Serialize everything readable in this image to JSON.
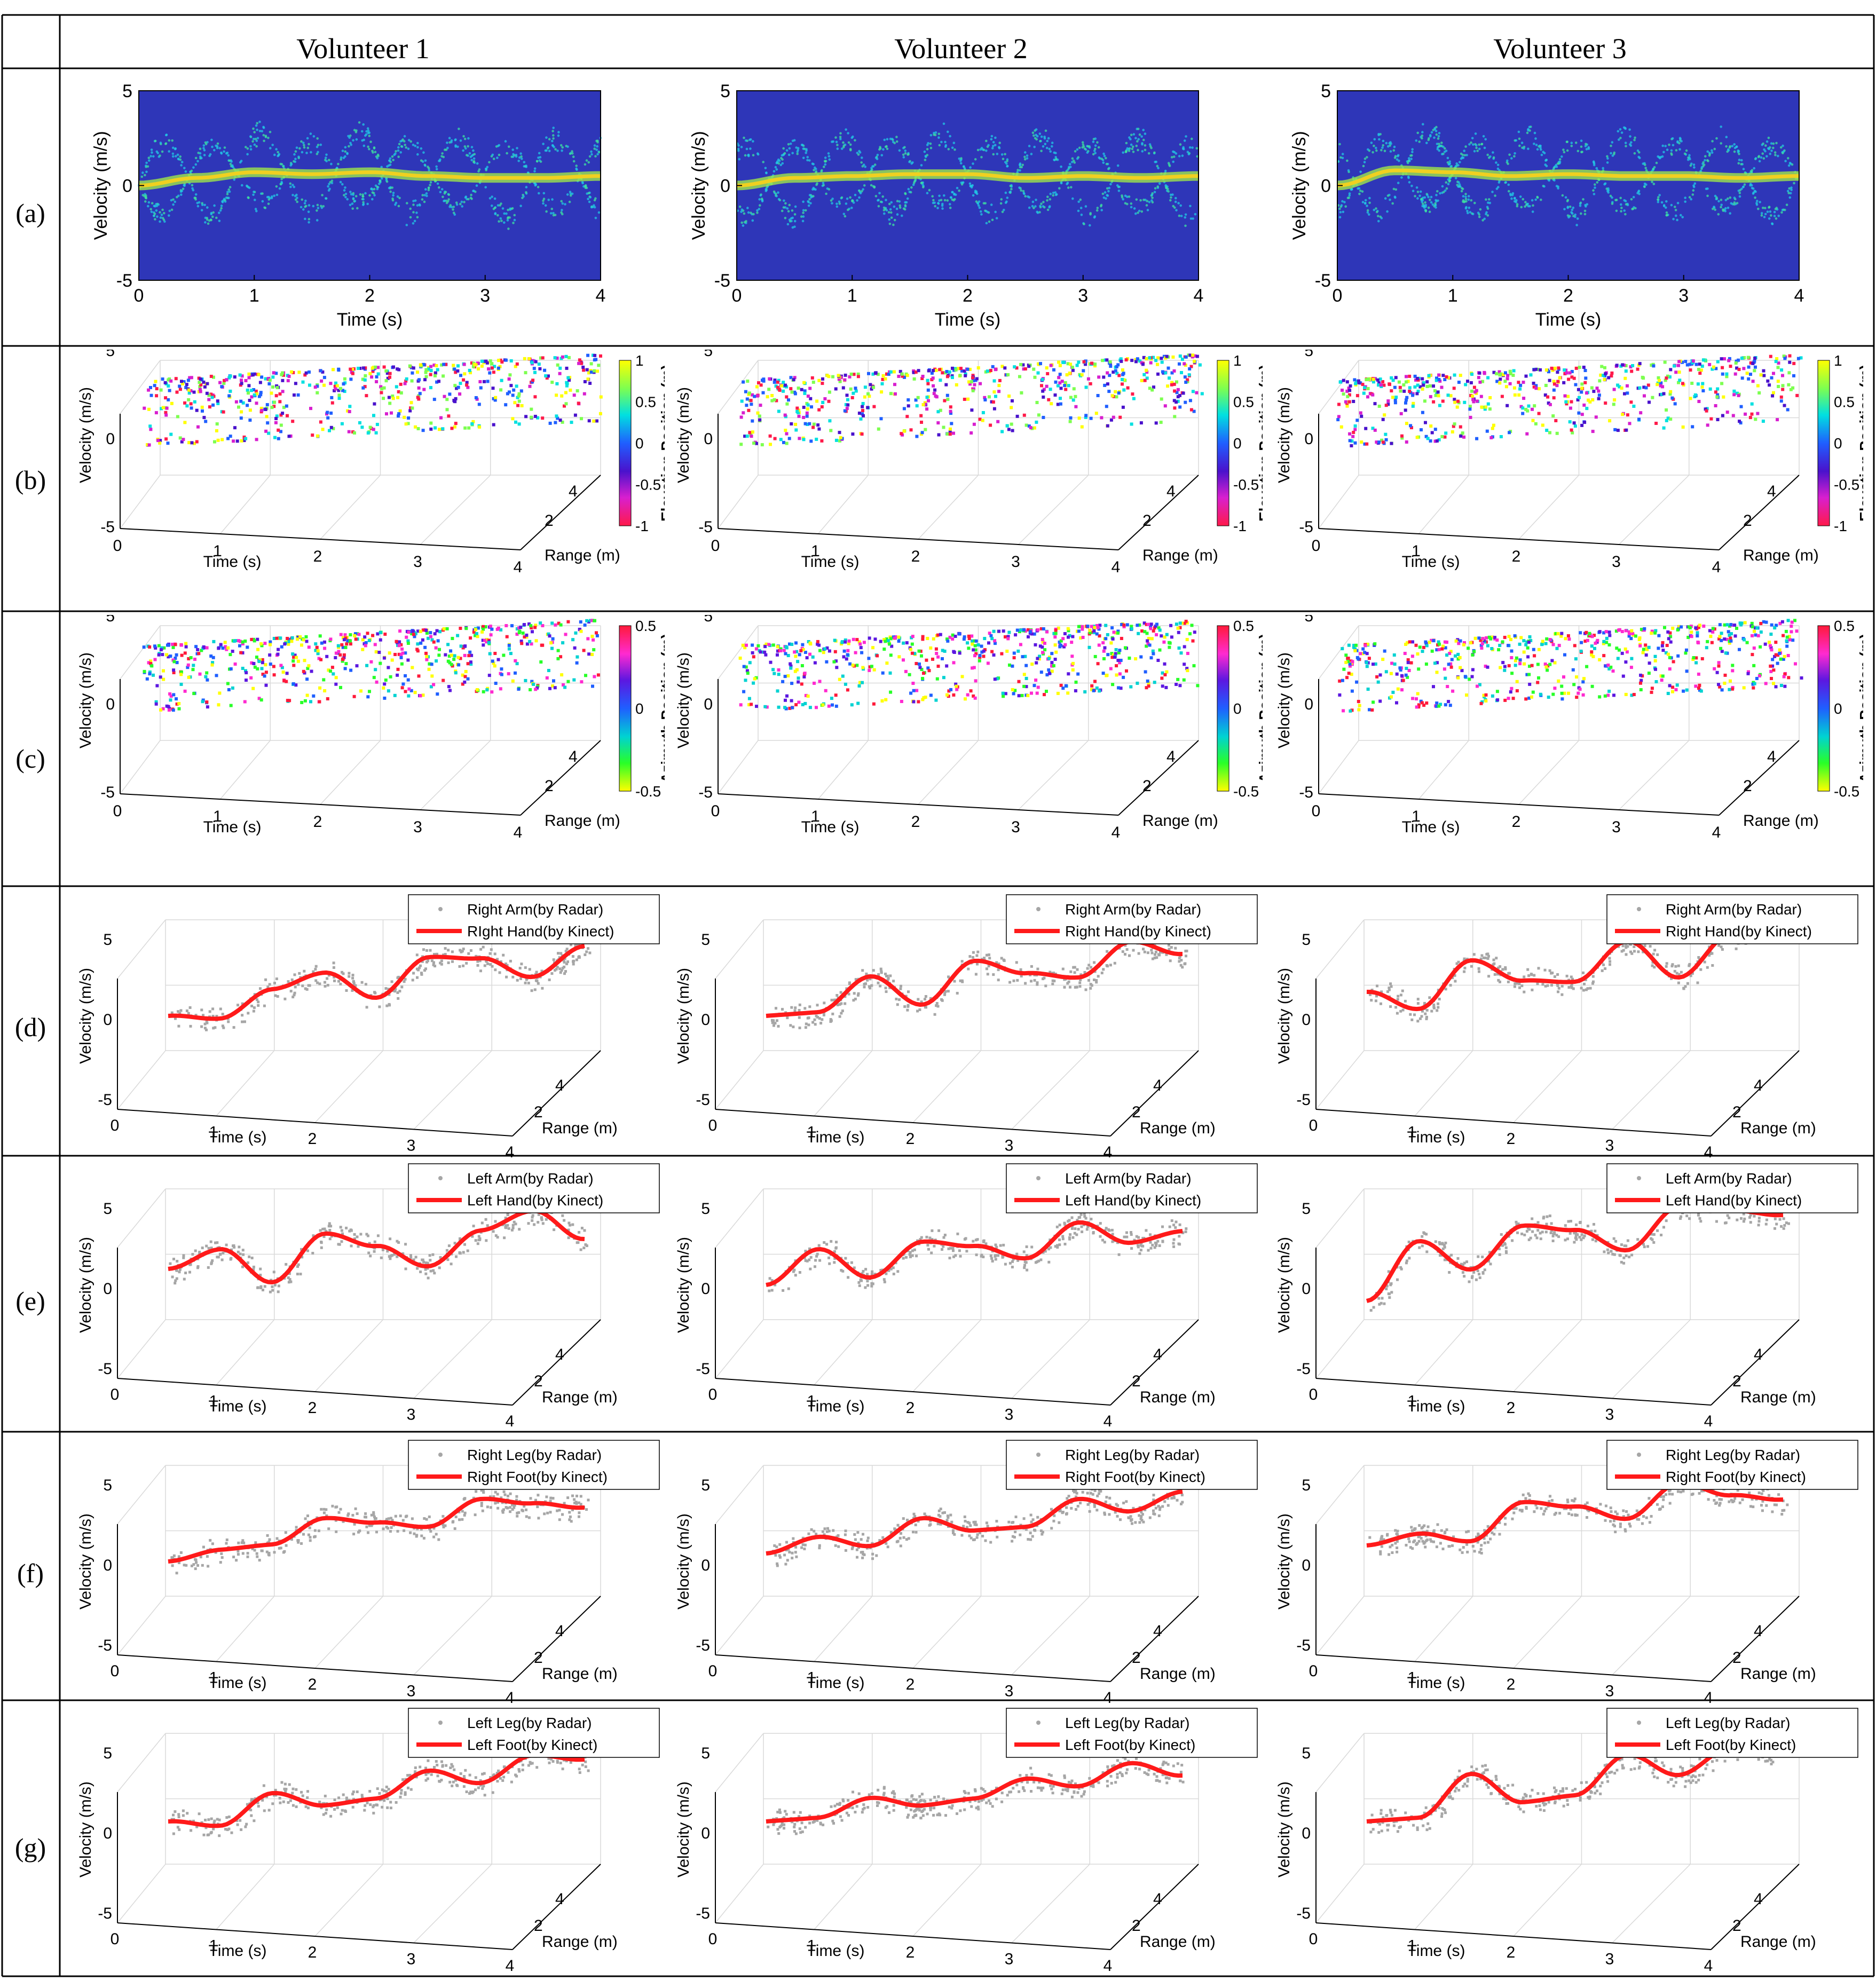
{
  "columns": [
    "Volunteer 1",
    "Volunteer 2",
    "Volunteer 3"
  ],
  "rows": [
    "(a)",
    "(b)",
    "(c)",
    "(d)",
    "(e)",
    "(f)",
    "(g)"
  ],
  "colors": {
    "red_line": "#ff1a1a",
    "gray_points": "#a6a6a6",
    "spectrogram_bg": "#2e36b8"
  },
  "row_a": {
    "type": "heatmap",
    "xlabel": "Time (s)",
    "ylabel": "Velocity (m/s)",
    "xticks": [
      "0",
      "1",
      "2",
      "3",
      "4"
    ],
    "yticks": [
      "5",
      "0",
      "-5"
    ],
    "xlim": [
      0,
      4
    ],
    "ylim": [
      -5,
      5
    ]
  },
  "row_b": {
    "type": "scatter",
    "ylabel": "Velocity (m/s)",
    "xlabel": "Time (s)",
    "zlabel": "Range (m)",
    "yticks": [
      "5",
      "0",
      "-5"
    ],
    "xticks": [
      "0",
      "1",
      "2",
      "3",
      "4"
    ],
    "zticks": [
      "2",
      "4"
    ],
    "colorbar": {
      "label": "Elevation Position (m)",
      "ticks": [
        "1",
        "0.5",
        "0",
        "-0.5",
        "-1"
      ],
      "range": [
        -1,
        1
      ]
    }
  },
  "row_c": {
    "type": "scatter",
    "ylabel": "Velocity (m/s)",
    "xlabel": "Time (s)",
    "zlabel": "Range (m)",
    "yticks": [
      "5",
      "0",
      "-5"
    ],
    "xticks": [
      "0",
      "1",
      "2",
      "3",
      "4"
    ],
    "zticks": [
      "2",
      "4"
    ],
    "colorbar": {
      "label": "Azimuth Position (m)",
      "ticks": [
        "0.5",
        "0",
        "-0.5"
      ],
      "range": [
        -0.5,
        0.5
      ]
    }
  },
  "row_d": {
    "legend": [
      "Right Arm(by Radar)",
      "RIght Hand(by Kinect)"
    ]
  },
  "row_e": {
    "legend": [
      "Left Arm(by Radar)",
      "Left Hand(by Kinect)"
    ]
  },
  "row_f": {
    "legend": [
      "Right Leg(by Radar)",
      "Right Foot(by Kinect)"
    ]
  },
  "row_g": {
    "legend": [
      "Left Leg(by Radar)",
      "Left Foot(by Kinect)"
    ]
  },
  "row_d_v23_legend": [
    "Right Arm(by Radar)",
    "Right Hand(by Kinect)"
  ],
  "track_axes": {
    "ylabel": "Velocity (m/s)",
    "xlabel": "Time (s)",
    "zlabel": "Range (m)",
    "yticks": [
      "5",
      "0",
      "-5"
    ],
    "xticks": [
      "0",
      "1",
      "2",
      "3",
      "4"
    ],
    "zticks": [
      "2",
      "4"
    ]
  },
  "chart_data": [
    {
      "panel": "a",
      "type": "heatmap",
      "title": "",
      "xlabel": "Time (s)",
      "ylabel": "Velocity (m/s)",
      "xlim": [
        0,
        4
      ],
      "ylim": [
        -5,
        5
      ],
      "series": [
        {
          "name": "Volunteer 1",
          "x": [
            0,
            0.5,
            1,
            1.5,
            2,
            2.5,
            3,
            3.5,
            4
          ],
          "y": [
            0,
            0.4,
            0.7,
            0.6,
            0.7,
            0.5,
            0.4,
            0.4,
            0.5
          ]
        },
        {
          "name": "Volunteer 2",
          "x": [
            0,
            0.5,
            1,
            1.5,
            2,
            2.5,
            3,
            3.5,
            4
          ],
          "y": [
            0,
            0.4,
            0.5,
            0.6,
            0.6,
            0.4,
            0.5,
            0.4,
            0.5
          ]
        },
        {
          "name": "Volunteer 3",
          "x": [
            0,
            0.5,
            1,
            1.5,
            2,
            2.5,
            3,
            3.5,
            4
          ],
          "y": [
            0,
            0.8,
            0.7,
            0.5,
            0.6,
            0.5,
            0.5,
            0.4,
            0.5
          ]
        }
      ]
    },
    {
      "panel": "d",
      "type": "line",
      "xlabel": "Time (s)",
      "ylabel": "Velocity (m/s)",
      "series": [
        {
          "name": "Volunteer 1",
          "x": [
            0,
            0.5,
            1,
            1.5,
            2,
            2.5,
            3,
            3.5,
            4
          ],
          "y": [
            0,
            -0.4,
            1.2,
            2,
            0.2,
            2.5,
            2.2,
            0.8,
            2.5
          ]
        },
        {
          "name": "Volunteer 2",
          "x": [
            0,
            0.5,
            1,
            1.5,
            2,
            2.5,
            3,
            3.5,
            4
          ],
          "y": [
            0,
            0,
            2,
            0,
            2.5,
            1.5,
            1,
            3,
            2
          ]
        },
        {
          "name": "Volunteer 3",
          "x": [
            0,
            0.5,
            1,
            1.5,
            2,
            2.5,
            3,
            3.5,
            4
          ],
          "y": [
            1.5,
            0.2,
            3,
            1.5,
            1.2,
            3.5,
            1,
            3.5,
            4
          ]
        }
      ]
    },
    {
      "panel": "e",
      "type": "line",
      "xlabel": "Time (s)",
      "ylabel": "Velocity (m/s)",
      "series": [
        {
          "name": "Volunteer 1",
          "x": [
            0,
            0.5,
            1,
            1.5,
            2,
            2.5,
            3,
            3.5,
            4
          ],
          "y": [
            1,
            2,
            -0.3,
            2.5,
            1.5,
            0,
            2,
            3,
            1
          ]
        },
        {
          "name": "Volunteer 2",
          "x": [
            0,
            0.5,
            1,
            1.5,
            2,
            2.5,
            3,
            3.5,
            4
          ],
          "y": [
            0,
            2,
            0,
            2,
            1.5,
            0.5,
            2.5,
            1,
            1.5
          ]
        },
        {
          "name": "Volunteer 3",
          "x": [
            0,
            0.5,
            1,
            1.5,
            2,
            2.5,
            3,
            3.5,
            4
          ],
          "y": [
            -1,
            2.5,
            0.5,
            3,
            2.5,
            1,
            3.5,
            3,
            2.5
          ]
        }
      ]
    },
    {
      "panel": "f",
      "type": "line",
      "xlabel": "Time (s)",
      "ylabel": "Velocity (m/s)",
      "series": [
        {
          "name": "Volunteer 1",
          "x": [
            0,
            0.5,
            1,
            1.5,
            2,
            2.5,
            3,
            3.5,
            4
          ],
          "y": [
            0,
            0.5,
            0.6,
            2,
            1.5,
            1,
            2.5,
            2,
            1.5
          ]
        },
        {
          "name": "Volunteer 2",
          "x": [
            0,
            0.5,
            1,
            1.5,
            2,
            2.5,
            3,
            3.5,
            4
          ],
          "y": [
            0.5,
            1.3,
            0.5,
            2,
            1,
            1,
            2.5,
            1.5,
            2.5
          ]
        },
        {
          "name": "Volunteer 3",
          "x": [
            0,
            0.5,
            1,
            1.5,
            2,
            2.5,
            3,
            3.5,
            4
          ],
          "y": [
            1,
            1.5,
            0.8,
            3,
            2.5,
            1.5,
            3.5,
            2.5,
            2
          ]
        }
      ]
    },
    {
      "panel": "g",
      "type": "line",
      "xlabel": "Time (s)",
      "ylabel": "Velocity (m/s)",
      "series": [
        {
          "name": "Volunteer 1",
          "x": [
            0,
            0.5,
            1,
            1.5,
            2,
            2.5,
            3,
            3.5,
            4
          ],
          "y": [
            0.5,
            0,
            1.8,
            0.8,
            1,
            2.5,
            1.5,
            3,
            2.5
          ]
        },
        {
          "name": "Volunteer 2",
          "x": [
            0,
            0.5,
            1,
            1.5,
            2,
            2.5,
            3,
            3.5,
            4
          ],
          "y": [
            0.5,
            0.5,
            1.5,
            0.8,
            1,
            2,
            1.3,
            2.5,
            1.5
          ]
        },
        {
          "name": "Volunteer 3",
          "x": [
            0,
            0.5,
            1,
            1.5,
            2,
            2.5,
            3,
            3.5,
            4
          ],
          "y": [
            0.5,
            0.5,
            3,
            1,
            1.2,
            3.5,
            2,
            3.5,
            2.8
          ]
        }
      ]
    }
  ]
}
